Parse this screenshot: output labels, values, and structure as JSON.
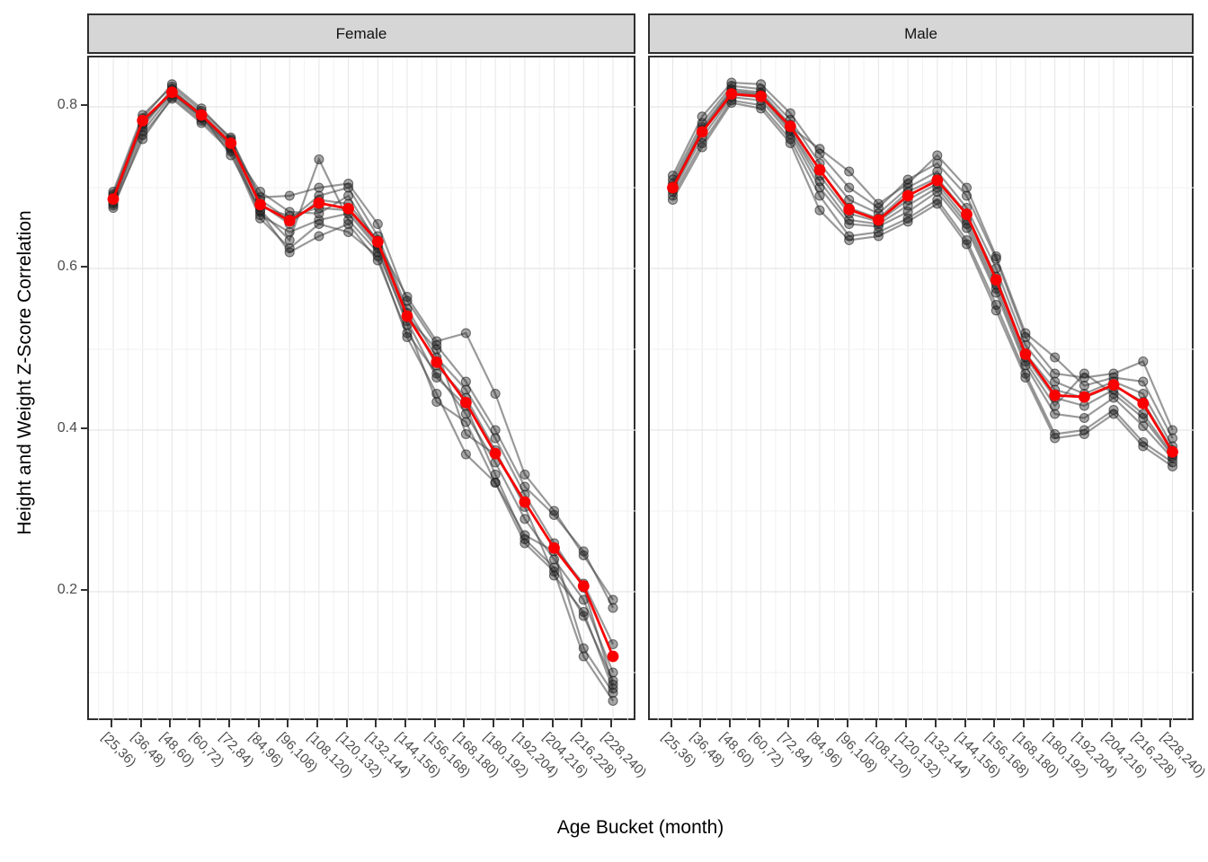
{
  "axes": {
    "y_title": "Height and Weight Z-Score Correlation",
    "x_title": "Age Bucket (month)",
    "y_ticks": [
      {
        "value": 0.8,
        "label": "0.8"
      },
      {
        "value": 0.6,
        "label": "0.6"
      },
      {
        "value": 0.4,
        "label": "0.4"
      },
      {
        "value": 0.2,
        "label": "0.2"
      }
    ]
  },
  "chart_data": {
    "type": "line",
    "facet_variable_values": [
      "Female",
      "Male"
    ],
    "categories": [
      "[25,36)",
      "[36,48)",
      "[48,60)",
      "[60,72)",
      "[72,84)",
      "[84,96)",
      "[96,108)",
      "[108,120)",
      "[120,132)",
      "[132,144)",
      "[144,156)",
      "[156,168)",
      "[168,180)",
      "[180,192)",
      "[192,204)",
      "[204,216)",
      "[216,228)",
      "[228,240)"
    ],
    "xlabel": "Age Bucket (month)",
    "ylabel": "Height and Weight Z-Score Correlation",
    "ylim": [
      0.04,
      0.861
    ],
    "y_major_gridlines": [
      0.2,
      0.4,
      0.6,
      0.8
    ],
    "y_minor_gridlines": [
      0.1,
      0.3,
      0.5,
      0.7
    ],
    "grid": "on",
    "legend": "none",
    "facets": [
      {
        "label": "Female",
        "mean_series": {
          "name": "mean",
          "values": [
            0.686,
            0.783,
            0.818,
            0.79,
            0.755,
            0.679,
            0.659,
            0.681,
            0.674,
            0.633,
            0.541,
            0.484,
            0.434,
            0.371,
            0.311,
            0.254,
            0.207,
            0.12
          ]
        },
        "individual_series": [
          {
            "values": [
              0.678,
              0.76,
              0.812,
              0.783,
              0.748,
              0.67,
              0.62,
              0.64,
              0.655,
              0.61,
              0.52,
              0.47,
              0.42,
              0.36,
              0.29,
              0.24,
              0.19,
              0.1
            ]
          },
          {
            "values": [
              0.682,
              0.77,
              0.815,
              0.786,
              0.752,
              0.666,
              0.645,
              0.66,
              0.668,
              0.625,
              0.53,
              0.435,
              0.41,
              0.335,
              0.27,
              0.25,
              0.13,
              0.075
            ]
          },
          {
            "values": [
              0.69,
              0.775,
              0.82,
              0.792,
              0.758,
              0.68,
              0.655,
              0.685,
              0.68,
              0.635,
              0.545,
              0.48,
              0.44,
              0.375,
              0.305,
              0.22,
              0.175,
              0.08
            ]
          },
          {
            "values": [
              0.695,
              0.79,
              0.825,
              0.795,
              0.762,
              0.685,
              0.66,
              0.69,
              0.7,
              0.64,
              0.55,
              0.49,
              0.45,
              0.39,
              0.32,
              0.26,
              0.205,
              0.085
            ]
          },
          {
            "values": [
              0.686,
              0.782,
              0.818,
              0.788,
              0.754,
              0.676,
              0.665,
              0.675,
              0.672,
              0.628,
              0.54,
              0.5,
              0.395,
              0.37,
              0.31,
              0.255,
              0.21,
              0.135
            ]
          },
          {
            "values": [
              0.68,
              0.778,
              0.822,
              0.79,
              0.74,
              0.672,
              0.635,
              0.735,
              0.66,
              0.62,
              0.535,
              0.465,
              0.43,
              0.345,
              0.265,
              0.23,
              0.17,
              0.09
            ]
          },
          {
            "values": [
              0.692,
              0.786,
              0.828,
              0.798,
              0.76,
              0.688,
              0.69,
              0.7,
              0.705,
              0.655,
              0.56,
              0.505,
              0.46,
              0.4,
              0.33,
              0.295,
              0.25,
              0.18
            ]
          },
          {
            "values": [
              0.675,
              0.765,
              0.81,
              0.78,
              0.745,
              0.662,
              0.625,
              0.655,
              0.645,
              0.615,
              0.515,
              0.445,
              0.37,
              0.335,
              0.26,
              0.225,
              0.12,
              0.065
            ]
          },
          {
            "values": [
              0.688,
              0.78,
              0.816,
              0.787,
              0.75,
              0.695,
              0.67,
              0.668,
              0.69,
              0.63,
              0.565,
              0.51,
              0.52,
              0.445,
              0.345,
              0.3,
              0.245,
              0.19
            ]
          }
        ]
      },
      {
        "label": "Male",
        "mean_series": {
          "name": "mean",
          "values": [
            0.7,
            0.769,
            0.816,
            0.813,
            0.776,
            0.722,
            0.673,
            0.66,
            0.69,
            0.709,
            0.667,
            0.586,
            0.494,
            0.443,
            0.441,
            0.456,
            0.433,
            0.373
          ]
        },
        "individual_series": [
          {
            "values": [
              0.69,
              0.755,
              0.808,
              0.802,
              0.76,
              0.69,
              0.64,
              0.645,
              0.662,
              0.685,
              0.635,
              0.555,
              0.47,
              0.395,
              0.4,
              0.425,
              0.385,
              0.36
            ]
          },
          {
            "values": [
              0.695,
              0.762,
              0.812,
              0.808,
              0.766,
              0.7,
              0.655,
              0.652,
              0.67,
              0.695,
              0.65,
              0.57,
              0.48,
              0.42,
              0.415,
              0.44,
              0.405,
              0.365
            ]
          },
          {
            "values": [
              0.7,
              0.77,
              0.818,
              0.815,
              0.772,
              0.715,
              0.668,
              0.658,
              0.685,
              0.705,
              0.66,
              0.58,
              0.49,
              0.44,
              0.43,
              0.45,
              0.42,
              0.37
            ]
          },
          {
            "values": [
              0.705,
              0.775,
              0.822,
              0.818,
              0.778,
              0.722,
              0.675,
              0.662,
              0.695,
              0.712,
              0.668,
              0.59,
              0.495,
              0.45,
              0.44,
              0.455,
              0.435,
              0.375
            ]
          },
          {
            "values": [
              0.71,
              0.78,
              0.826,
              0.822,
              0.784,
              0.73,
              0.685,
              0.668,
              0.7,
              0.72,
              0.675,
              0.6,
              0.505,
              0.46,
              0.445,
              0.46,
              0.445,
              0.38
            ]
          },
          {
            "values": [
              0.715,
              0.788,
              0.83,
              0.828,
              0.792,
              0.742,
              0.7,
              0.675,
              0.71,
              0.73,
              0.69,
              0.612,
              0.515,
              0.47,
              0.465,
              0.47,
              0.485,
              0.4
            ]
          },
          {
            "values": [
              0.685,
              0.75,
              0.805,
              0.798,
              0.755,
              0.672,
              0.635,
              0.64,
              0.658,
              0.68,
              0.63,
              0.548,
              0.465,
              0.39,
              0.395,
              0.42,
              0.38,
              0.355
            ]
          },
          {
            "values": [
              0.698,
              0.768,
              0.815,
              0.812,
              0.77,
              0.708,
              0.66,
              0.655,
              0.678,
              0.7,
              0.655,
              0.575,
              0.485,
              0.43,
              0.47,
              0.445,
              0.415,
              0.368
            ]
          },
          {
            "values": [
              0.702,
              0.772,
              0.82,
              0.816,
              0.775,
              0.748,
              0.72,
              0.68,
              0.705,
              0.74,
              0.7,
              0.615,
              0.52,
              0.49,
              0.455,
              0.465,
              0.46,
              0.39
            ]
          }
        ]
      }
    ],
    "colors": {
      "mean_line": "#fa0000",
      "individual_line": "rgba(70,70,70,0.55)",
      "individual_point_fill": "rgba(30,30,30,0.40)",
      "individual_point_stroke": "rgba(30,30,30,0.60)",
      "strip_fill": "#d6d6d6",
      "panel_border": "#2f2f2f",
      "grid_major": "#e5e5e5",
      "grid_minor": "#f2f2f2",
      "tick_label": "#4d4d4d"
    }
  }
}
